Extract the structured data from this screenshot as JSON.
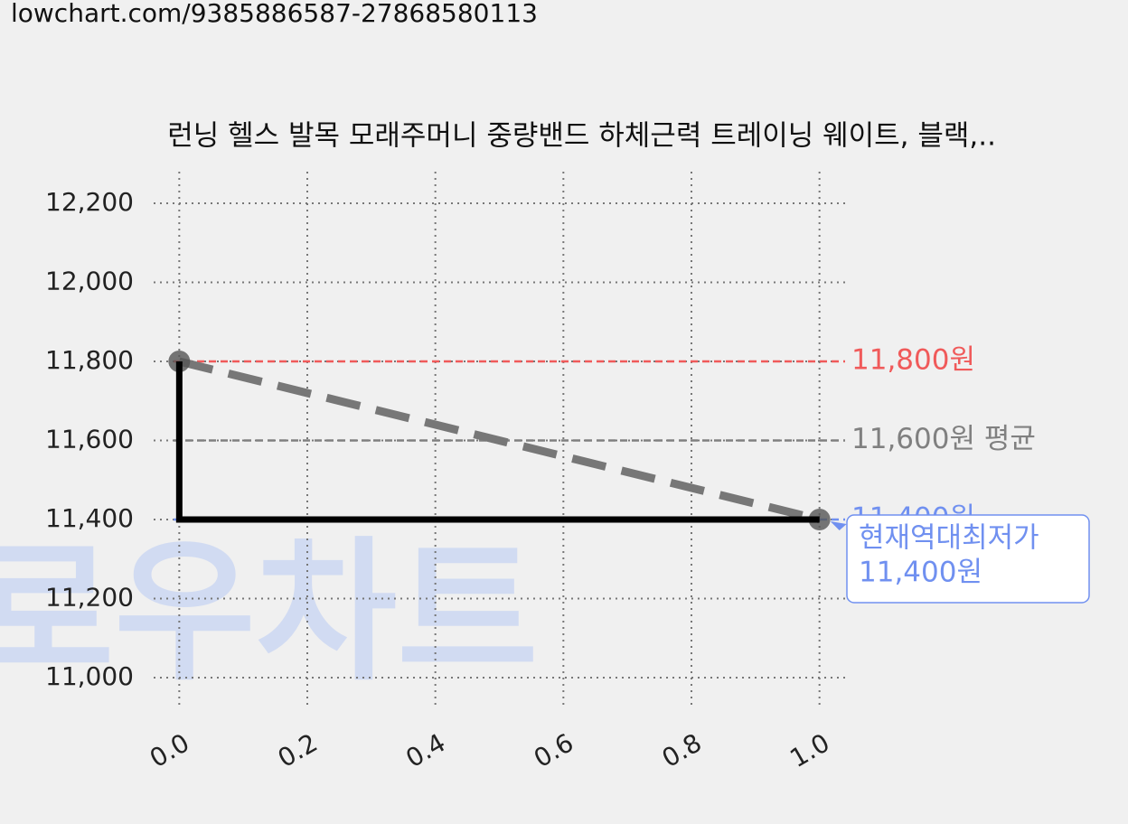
{
  "url": "lowchart.com/9385886587-27868580113",
  "chart_data": {
    "type": "line",
    "title": "런닝 헬스 발목 모래주머니 중량밴드 하체근력 트레이닝 웨이트, 블랙,..",
    "watermark": "로우차트",
    "xlim": [
      -0.04,
      1.04
    ],
    "ylim": [
      10920,
      12280
    ],
    "xticks": [
      {
        "value": 0,
        "label": "0.0"
      },
      0.2,
      0.4,
      0.6,
      0.8,
      {
        "value": 1,
        "label": "1.0"
      }
    ],
    "yticks": [
      {
        "value": 11000,
        "label": "11,000"
      },
      {
        "value": 11200,
        "label": "11,200"
      },
      {
        "value": 11400,
        "label": "11,400"
      },
      {
        "value": 11600,
        "label": "11,600"
      },
      {
        "value": 11800,
        "label": "11,800"
      },
      {
        "value": 12000,
        "label": "12,000"
      },
      {
        "value": 12200,
        "label": "12,200"
      }
    ],
    "grid": true,
    "series": [
      {
        "x": [
          0,
          1
        ],
        "values": [
          11800,
          11400
        ],
        "color": "#777777",
        "style": "dashed",
        "markers": true
      },
      {
        "x": [
          0,
          0,
          1
        ],
        "values": [
          11800,
          11400,
          11400
        ],
        "color": "#000000",
        "style": "solid",
        "markers": false
      }
    ],
    "hlines": [
      {
        "value": 11800,
        "label": "11,800원",
        "color": "#f05a5a"
      },
      {
        "value": 11600,
        "label": "11,600원 평균",
        "color": "#808080"
      },
      {
        "value": 11400,
        "label": "11,400원",
        "color": "#7090f0"
      }
    ],
    "annotation": {
      "x": 1,
      "y": 11400,
      "lines": [
        "현재역대최저가",
        "11,400원"
      ],
      "color": "#7090f0"
    }
  }
}
